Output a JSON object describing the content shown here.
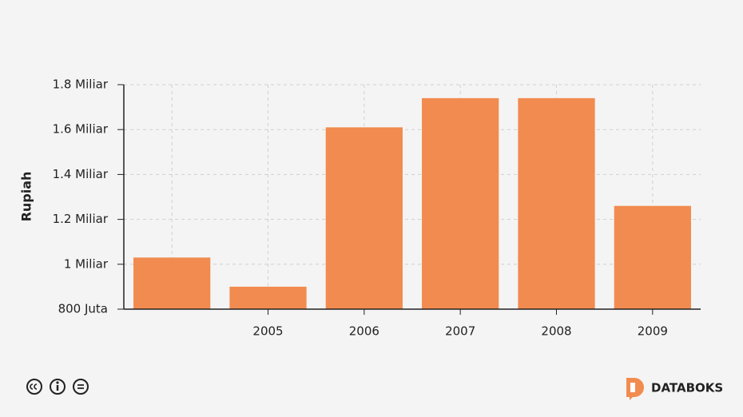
{
  "chart_data": {
    "type": "bar",
    "y_label": "Rupiah",
    "categories": [
      null,
      "2005",
      "2006",
      "2007",
      "2008",
      "2009"
    ],
    "values": [
      1030000000,
      900000000,
      1610000000,
      1740000000,
      1740000000,
      1260000000
    ],
    "color": "#f28b4f",
    "ylim": [
      800000000,
      1800000000
    ],
    "yticks": [
      {
        "value": 800000000,
        "label": "800 Juta"
      },
      {
        "value": 1000000000,
        "label": "1 Miliar"
      },
      {
        "value": 1200000000,
        "label": "1.2 Miliar"
      },
      {
        "value": 1400000000,
        "label": "1.4 Miliar"
      },
      {
        "value": 1600000000,
        "label": "1.6 Miliar"
      },
      {
        "value": 1800000000,
        "label": "1.8 Miliar"
      }
    ],
    "grid": true
  },
  "logo_text": "DATABOKS"
}
